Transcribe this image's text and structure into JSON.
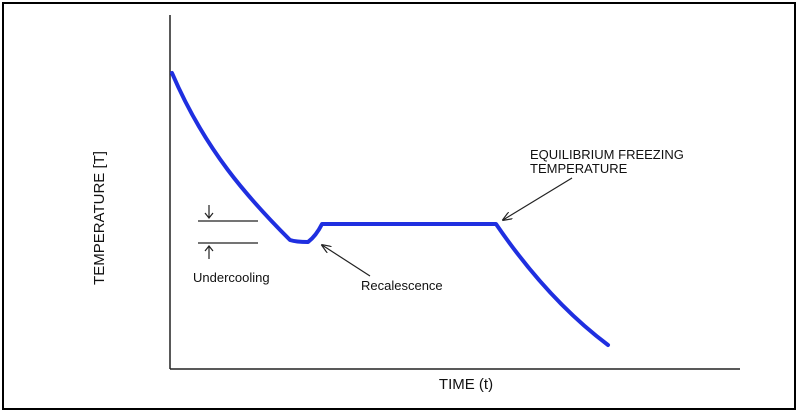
{
  "figure": {
    "y_axis_label": "TEMPERATURE [T]",
    "x_axis_label": "TIME (t)",
    "annotations": {
      "undercooling": "Undercooling",
      "recalescence": "Recalescence",
      "equilibrium_line1": "EQUILIBRIUM FREEZING",
      "equilibrium_line2": "TEMPERATURE"
    }
  },
  "colors": {
    "curve": "#1f2fe0",
    "axes": "#222222",
    "frame": "#000000",
    "arrows": "#222222"
  }
}
